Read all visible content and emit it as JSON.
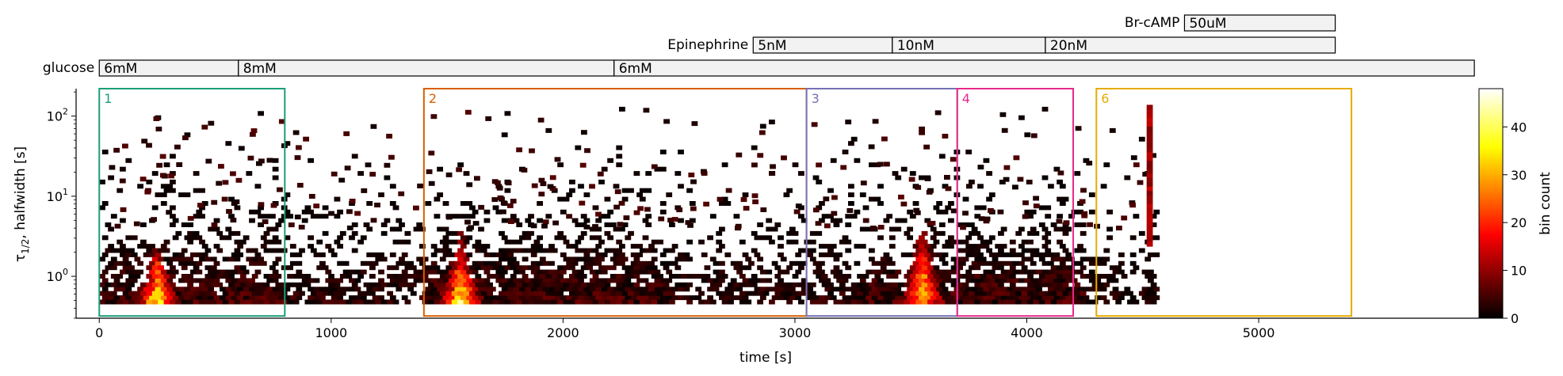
{
  "chart_data": {
    "type": "heatmap",
    "subtype": "hexbin",
    "xlabel": "time [s]",
    "ylabel_main": "τ",
    "ylabel_sub": "1/2",
    "ylabel_rest": ", halfwidth [s]",
    "y_scale": "log",
    "xlim": [
      -100,
      5950
    ],
    "ylim": [
      0.3,
      220
    ],
    "x_ticks": [
      0,
      1000,
      2000,
      3000,
      4000,
      5000
    ],
    "x_tick_labels": [
      "0",
      "1000",
      "2000",
      "3000",
      "4000",
      "5000"
    ],
    "y_ticks": [
      1,
      10,
      100
    ],
    "y_tick_base": "10",
    "y_tick_exps": [
      "0",
      "1",
      "2"
    ],
    "colorbar": {
      "label": "bin count",
      "min": 0,
      "max": 48,
      "ticks": [
        0,
        10,
        20,
        30,
        40
      ],
      "tick_labels": [
        "0",
        "10",
        "20",
        "30",
        "40"
      ],
      "colormap": "hot"
    },
    "data_extent": {
      "x": [
        0,
        4560
      ],
      "y": [
        0.45,
        130
      ]
    },
    "activity_peaks": [
      {
        "x": 250,
        "y_top": 2.5,
        "max_count": 45
      },
      {
        "x": 1560,
        "y_top": 3.5,
        "max_count": 40
      },
      {
        "x": 3550,
        "y_top": 5.5,
        "max_count": 38
      }
    ],
    "stimuli": [
      {
        "name": "glucose",
        "segments": [
          {
            "label": "6mM",
            "start": 0,
            "end": 600
          },
          {
            "label": "8mM",
            "start": 600,
            "end": 2220
          },
          {
            "label": "6mM",
            "start": 2220,
            "end": 5930
          }
        ]
      },
      {
        "name": "Epinephrine",
        "segments": [
          {
            "label": "5nM",
            "start": 2820,
            "end": 3420
          },
          {
            "label": "10nM",
            "start": 3420,
            "end": 4080
          },
          {
            "label": "20nM",
            "start": 4080,
            "end": 5330
          }
        ]
      },
      {
        "name": "Br-cAMP",
        "segments": [
          {
            "label": "50uM",
            "start": 4680,
            "end": 5330
          }
        ]
      }
    ],
    "regions": [
      {
        "label": "1",
        "x0": 0,
        "x1": 800,
        "y0": 0.32,
        "y1": 220,
        "color": "#1b9e77"
      },
      {
        "label": "2",
        "x0": 1400,
        "x1": 3050,
        "y0": 0.32,
        "y1": 220,
        "color": "#d95f02"
      },
      {
        "label": "3",
        "x0": 3050,
        "x1": 3700,
        "y0": 0.32,
        "y1": 220,
        "color": "#7570b3"
      },
      {
        "label": "4",
        "x0": 3700,
        "x1": 4200,
        "y0": 0.32,
        "y1": 220,
        "color": "#e7298a"
      },
      {
        "label": "6",
        "x0": 4300,
        "x1": 5400,
        "y0": 0.32,
        "y1": 220,
        "color": "#e6ab02"
      }
    ]
  }
}
